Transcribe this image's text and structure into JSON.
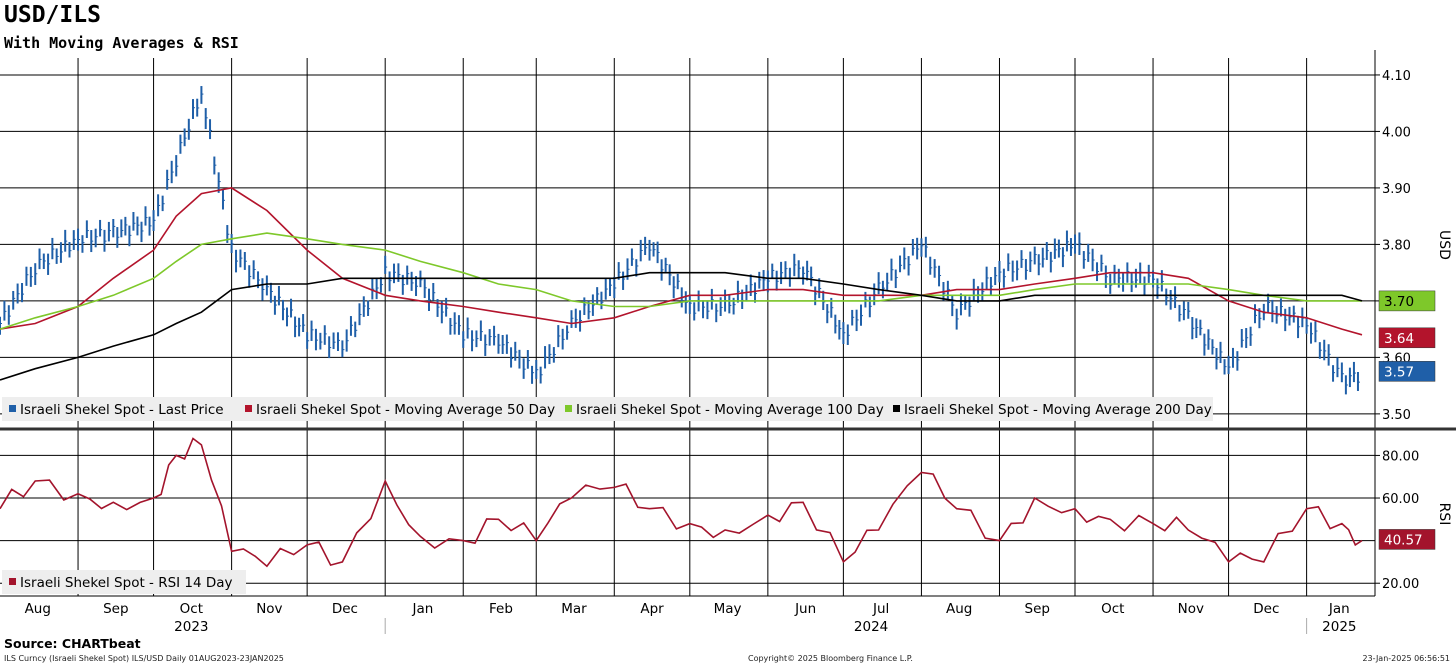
{
  "title": "USD/ILS",
  "subtitle": "With Moving Averages & RSI",
  "source": "Source: CHARTbeat",
  "footer": {
    "left": "ILS Curncy (Israeli Shekel Spot) ILS/USD  Daily 01AUG2023-23JAN2025",
    "center": "Copyright© 2025 Bloomberg Finance L.P.",
    "right": "23-Jan-2025 06:56:51"
  },
  "colors": {
    "price": "#1f5fa8",
    "ma50": "#b3142c",
    "ma100": "#7ec82a",
    "ma200": "#000000",
    "rsi": "#a3142c",
    "grid": "#000000"
  },
  "chart_data": [
    {
      "type": "line",
      "title": "USD/ILS",
      "ylabel": "USD",
      "ylim": [
        3.475,
        4.13
      ],
      "yticks": [
        "4.10",
        "4.00",
        "3.90",
        "3.80",
        "3.70",
        "3.60",
        "3.50"
      ],
      "grid": true,
      "legend_position": "bottom-left",
      "x": [
        "2023-08-01",
        "2023-08-15",
        "2023-09-01",
        "2023-09-15",
        "2023-10-01",
        "2023-10-10",
        "2023-10-20",
        "2023-11-01",
        "2023-11-15",
        "2023-12-01",
        "2023-12-15",
        "2024-01-01",
        "2024-01-15",
        "2024-02-01",
        "2024-02-15",
        "2024-03-01",
        "2024-03-15",
        "2024-04-01",
        "2024-04-15",
        "2024-05-01",
        "2024-05-15",
        "2024-06-01",
        "2024-06-15",
        "2024-07-01",
        "2024-07-15",
        "2024-08-01",
        "2024-08-15",
        "2024-09-01",
        "2024-09-15",
        "2024-10-01",
        "2024-10-15",
        "2024-11-01",
        "2024-11-15",
        "2024-12-01",
        "2024-12-15",
        "2025-01-01",
        "2025-01-15",
        "2025-01-23"
      ],
      "series": [
        {
          "name": "Israeli Shekel Spot - Last Price",
          "color": "#1f5fa8",
          "style": "ohlc-bars",
          "values": [
            3.66,
            3.76,
            3.81,
            3.82,
            3.84,
            3.95,
            4.07,
            3.79,
            3.72,
            3.64,
            3.62,
            3.75,
            3.73,
            3.64,
            3.63,
            3.57,
            3.66,
            3.73,
            3.8,
            3.69,
            3.69,
            3.74,
            3.76,
            3.64,
            3.72,
            3.8,
            3.68,
            3.75,
            3.77,
            3.8,
            3.74,
            3.74,
            3.67,
            3.58,
            3.69,
            3.66,
            3.56,
            3.57
          ]
        },
        {
          "name": "Israeli Shekel Spot - Moving Average 50 Day",
          "color": "#b3142c",
          "values": [
            3.65,
            3.66,
            3.69,
            3.74,
            3.79,
            3.85,
            3.89,
            3.9,
            3.86,
            3.79,
            3.74,
            3.71,
            3.7,
            3.69,
            3.68,
            3.67,
            3.66,
            3.67,
            3.69,
            3.71,
            3.71,
            3.72,
            3.72,
            3.71,
            3.71,
            3.71,
            3.72,
            3.72,
            3.73,
            3.74,
            3.75,
            3.75,
            3.74,
            3.7,
            3.68,
            3.67,
            3.65,
            3.64
          ]
        },
        {
          "name": "Israeli Shekel Spot - Moving Average 100 Day",
          "color": "#7ec82a",
          "values": [
            3.65,
            3.67,
            3.69,
            3.71,
            3.74,
            3.77,
            3.8,
            3.81,
            3.82,
            3.81,
            3.8,
            3.79,
            3.77,
            3.75,
            3.73,
            3.72,
            3.7,
            3.69,
            3.69,
            3.7,
            3.7,
            3.7,
            3.7,
            3.7,
            3.7,
            3.71,
            3.71,
            3.71,
            3.72,
            3.73,
            3.73,
            3.73,
            3.73,
            3.72,
            3.71,
            3.7,
            3.7,
            3.7
          ]
        },
        {
          "name": "Israeli Shekel Spot - Moving Average 200 Day",
          "color": "#000000",
          "values": [
            3.56,
            3.58,
            3.6,
            3.62,
            3.64,
            3.66,
            3.68,
            3.72,
            3.73,
            3.73,
            3.74,
            3.74,
            3.74,
            3.74,
            3.74,
            3.74,
            3.74,
            3.74,
            3.75,
            3.75,
            3.75,
            3.74,
            3.74,
            3.73,
            3.72,
            3.71,
            3.7,
            3.7,
            3.71,
            3.71,
            3.71,
            3.71,
            3.71,
            3.71,
            3.71,
            3.71,
            3.71,
            3.7
          ]
        }
      ],
      "last_value_labels": [
        {
          "text": "3.70",
          "color": "#7ec82a",
          "value": 3.7
        },
        {
          "text": "3.64",
          "color": "#b3142c",
          "value": 3.64
        },
        {
          "text": "3.57",
          "color": "#1f5fa8",
          "value": 3.57
        }
      ]
    },
    {
      "type": "line",
      "title": "RSI",
      "ylabel": "RSI",
      "ylim": [
        14,
        91
      ],
      "yticks": [
        "80.00",
        "60.00",
        "20.00"
      ],
      "grid": true,
      "legend_position": "bottom-left",
      "x": [
        "2023-08-01",
        "2023-08-15",
        "2023-09-01",
        "2023-09-15",
        "2023-10-01",
        "2023-10-10",
        "2023-10-20",
        "2023-11-01",
        "2023-11-15",
        "2023-12-01",
        "2023-12-15",
        "2024-01-01",
        "2024-01-15",
        "2024-02-01",
        "2024-02-15",
        "2024-03-01",
        "2024-03-15",
        "2024-04-01",
        "2024-04-15",
        "2024-05-01",
        "2024-05-15",
        "2024-06-01",
        "2024-06-15",
        "2024-07-01",
        "2024-07-15",
        "2024-08-01",
        "2024-08-15",
        "2024-09-01",
        "2024-09-15",
        "2024-10-01",
        "2024-10-15",
        "2024-11-01",
        "2024-11-15",
        "2024-12-01",
        "2024-12-15",
        "2025-01-01",
        "2025-01-15",
        "2025-01-23"
      ],
      "series": [
        {
          "name": "Israeli Shekel Spot - RSI 14 Day",
          "color": "#a3142c",
          "values": [
            55,
            68,
            62,
            58,
            60,
            80,
            85,
            35,
            28,
            38,
            30,
            68,
            42,
            40,
            50,
            40,
            60,
            65,
            55,
            48,
            45,
            52,
            58,
            30,
            45,
            72,
            55,
            40,
            60,
            55,
            50,
            48,
            45,
            30,
            30,
            55,
            48,
            40
          ]
        }
      ],
      "last_value_labels": [
        {
          "text": "40.57",
          "color": "#a3142c",
          "value": 40.57
        }
      ]
    }
  ],
  "x_axis": {
    "months": [
      "Aug",
      "Sep",
      "Oct",
      "Nov",
      "Dec",
      "Jan",
      "Feb",
      "Mar",
      "Apr",
      "May",
      "Jun",
      "Jul",
      "Aug",
      "Sep",
      "Oct",
      "Nov",
      "Dec",
      "Jan"
    ],
    "years": [
      "2023",
      "2024",
      "2025"
    ]
  }
}
